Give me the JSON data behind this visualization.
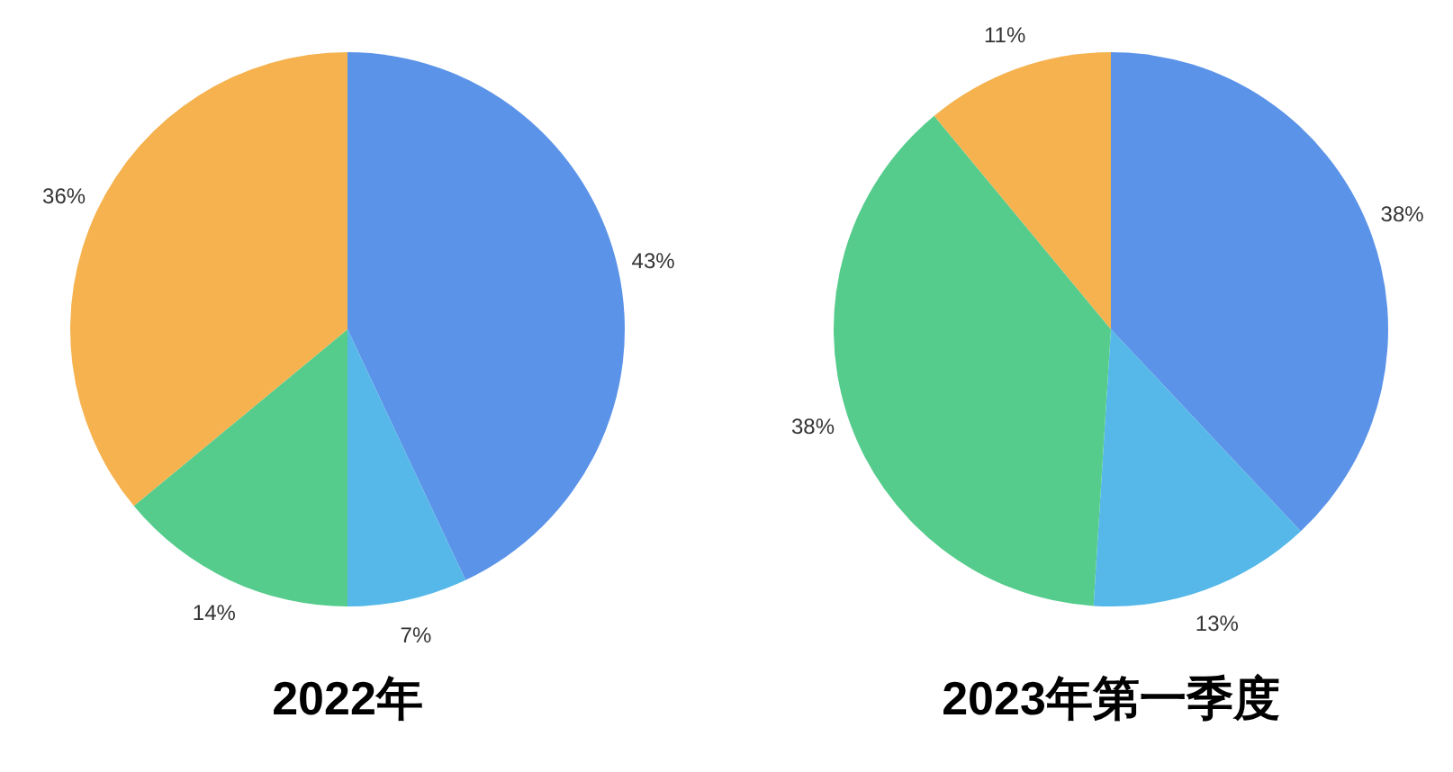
{
  "chart_data": [
    {
      "type": "pie",
      "title": "2022年",
      "categories": [
        null,
        null,
        null,
        null
      ],
      "values": [
        43,
        7,
        14,
        36
      ],
      "colors": [
        "#5b93e8",
        "#55b8e8",
        "#55cc8c",
        "#f5b24f"
      ],
      "value_labels": [
        "43%",
        "7%",
        "14%",
        "36%"
      ]
    },
    {
      "type": "pie",
      "title": "2023年第一季度",
      "categories": [
        null,
        null,
        null,
        null
      ],
      "values": [
        38,
        13,
        38,
        11
      ],
      "colors": [
        "#5b93e8",
        "#55b8e8",
        "#55cc8c",
        "#f5b24f"
      ],
      "value_labels": [
        "38%",
        "13%",
        "38%",
        "11%"
      ]
    }
  ]
}
